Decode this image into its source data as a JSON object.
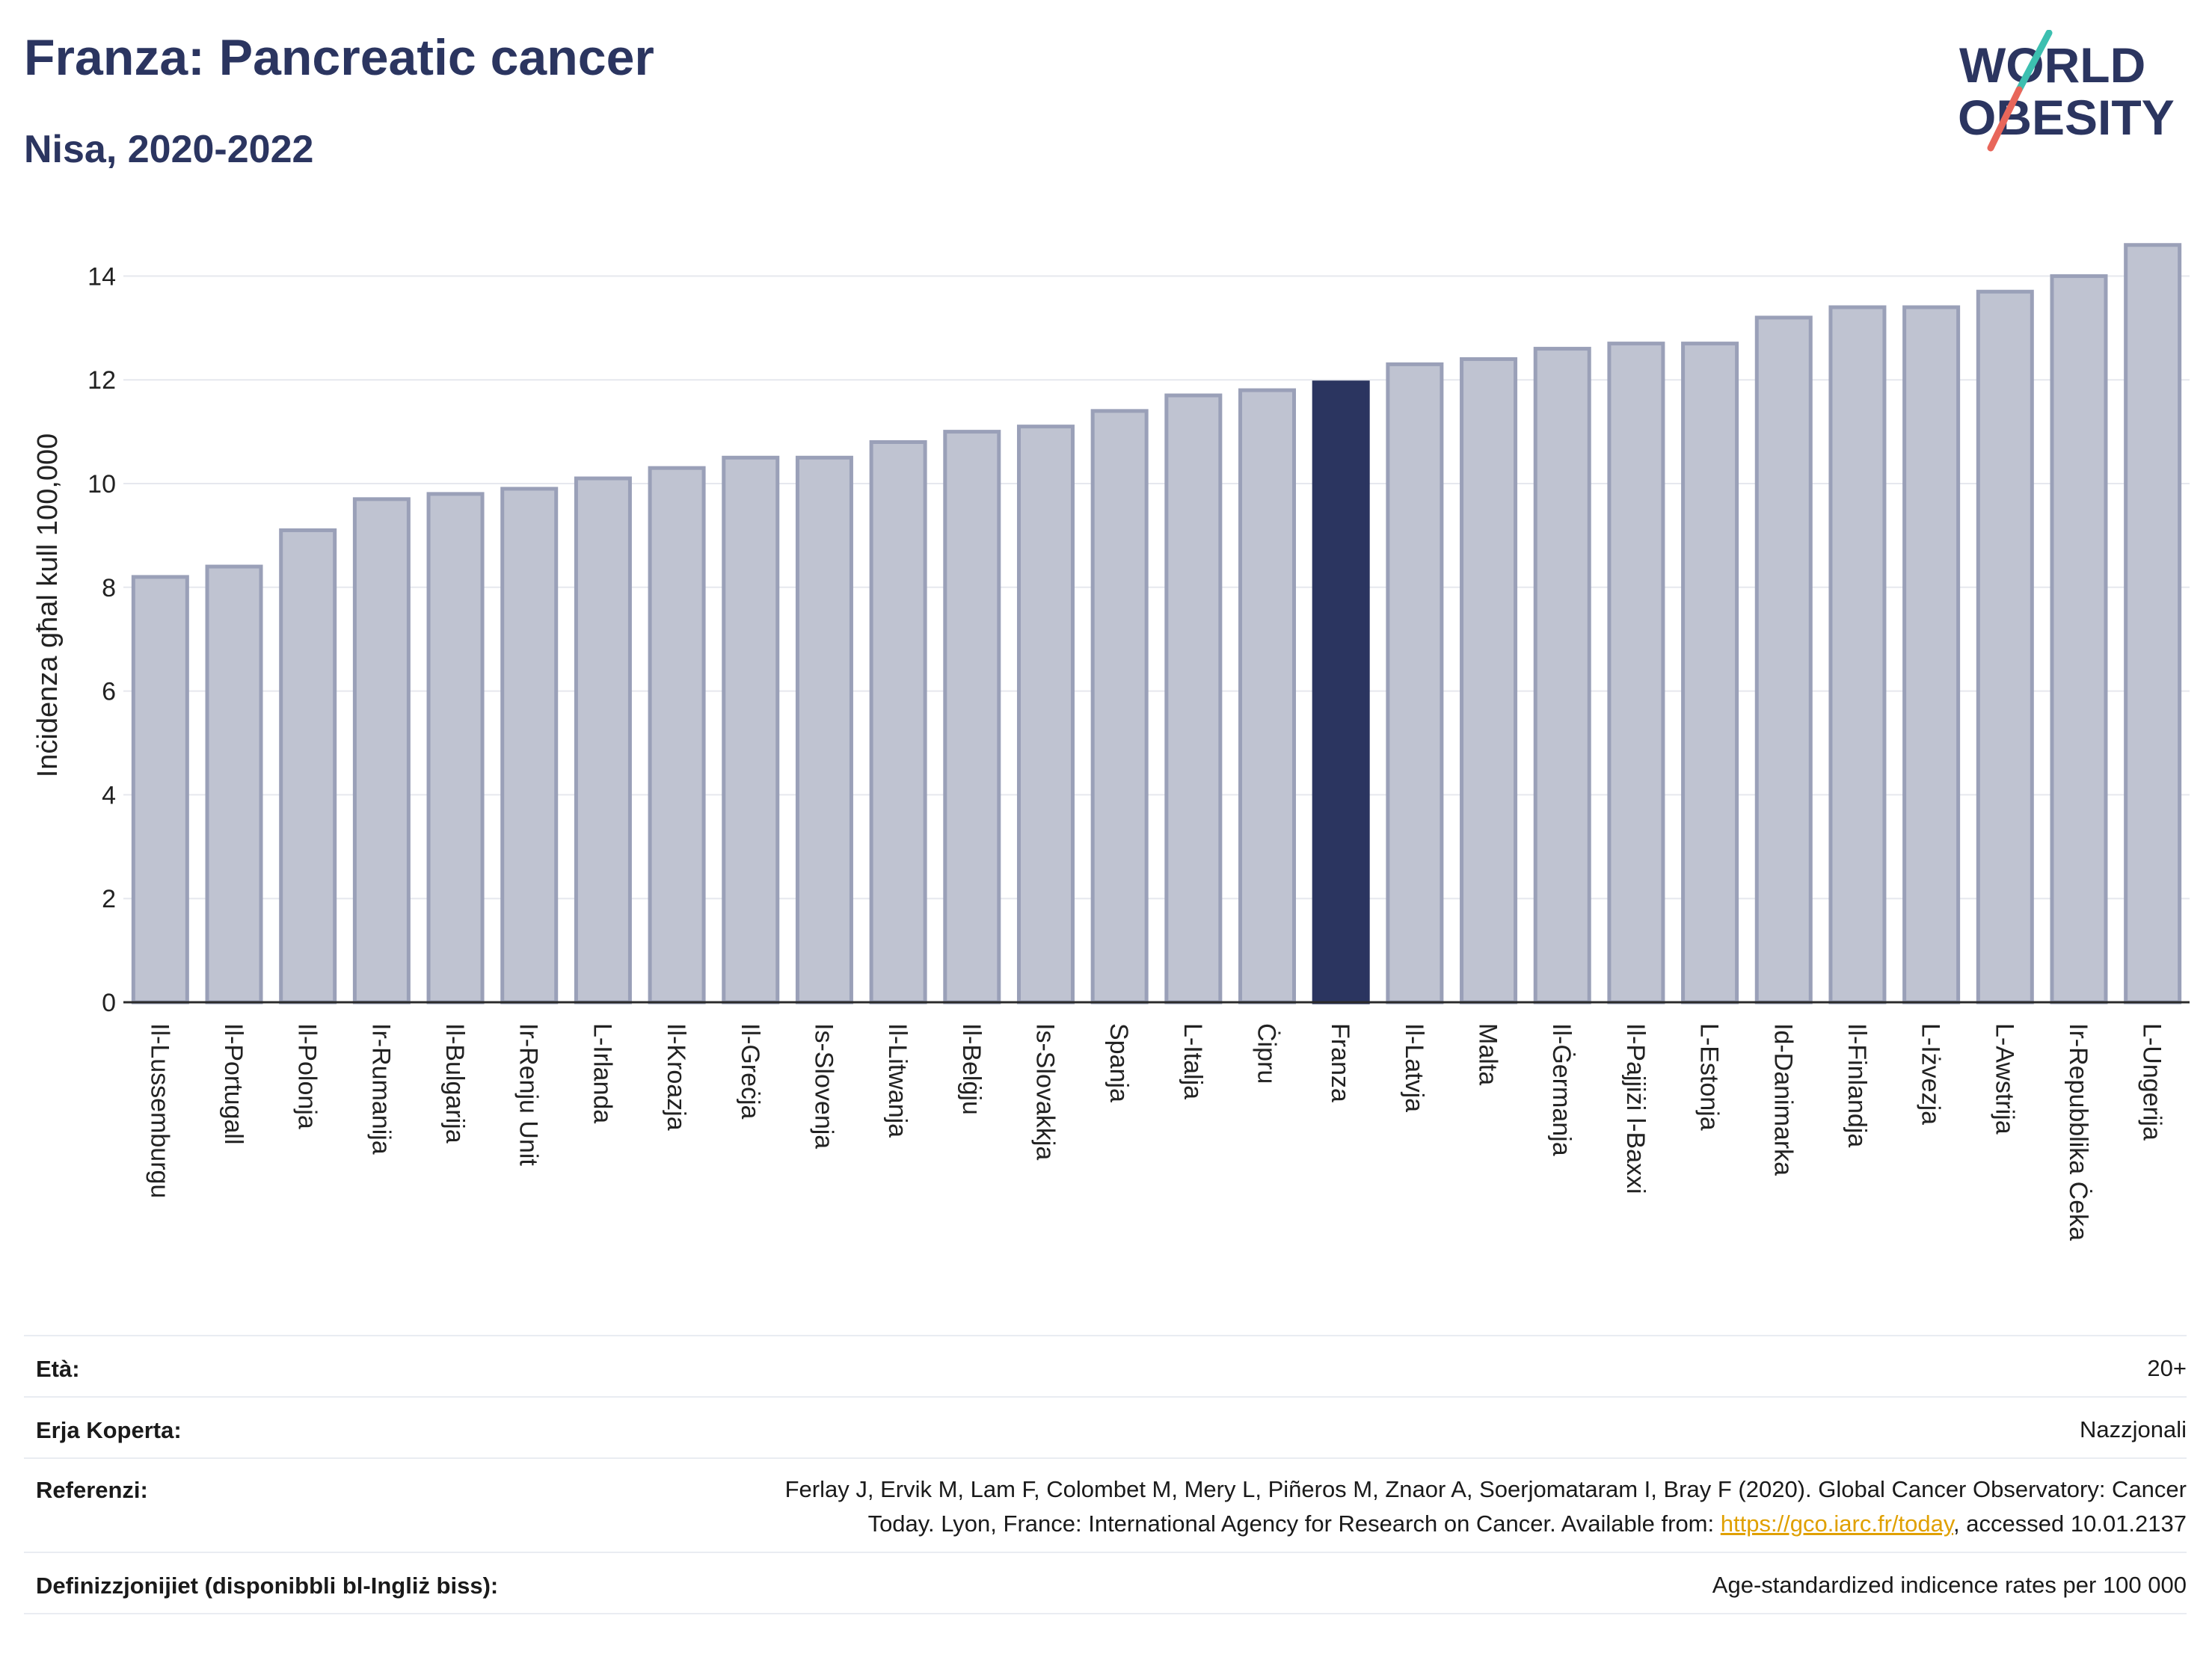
{
  "header": {
    "title": "Franza: Pancreatic cancer",
    "subtitle": "Nisa, 2020-2022"
  },
  "logo": {
    "line1": "WORLD",
    "line2": "OBESITY",
    "text_color": "#2b3560",
    "slash_color_top": "#3cbfb0",
    "slash_color_bottom": "#e8665a"
  },
  "colors": {
    "bar_fill": "#bfc3d1",
    "bar_stroke": "#9aa0b8",
    "highlight_fill": "#2b3560",
    "axis": "#2b2b2b",
    "grid": "#e6e8ee"
  },
  "chart_data": {
    "type": "bar",
    "ylabel": "Inċidenza għal kull 100,000",
    "xlabel": "",
    "ylim": [
      0,
      15
    ],
    "yticks": [
      0,
      2,
      4,
      6,
      8,
      10,
      12,
      14
    ],
    "grid": true,
    "highlight": "Franza",
    "categories": [
      "Il-Lussemburgu",
      "Il-Portugall",
      "Il-Polonja",
      "Ir-Rumanija",
      "Il-Bulgarija",
      "Ir-Renju Unit",
      "L-Irlanda",
      "Il-Kroazja",
      "Il-Greċja",
      "Is-Slovenja",
      "Il-Litwanja",
      "Il-Belġju",
      "Is-Slovakkja",
      "Spanja",
      "L-Italja",
      "Ċipru",
      "Franza",
      "Il-Latvja",
      "Malta",
      "Il-Ġermanja",
      "Il-Pajjiżi l-Baxxi",
      "L-Estonja",
      "Id-Danimarka",
      "Il-Finlandja",
      "L-Iżvezja",
      "L-Awstrija",
      "Ir-Repubblika Ċeka",
      "L-Ungerija"
    ],
    "values": [
      8.2,
      8.4,
      9.1,
      9.7,
      9.8,
      9.9,
      10.1,
      10.3,
      10.5,
      10.5,
      10.8,
      11.0,
      11.1,
      11.4,
      11.7,
      11.8,
      11.95,
      12.3,
      12.4,
      12.6,
      12.7,
      12.7,
      13.2,
      13.4,
      13.4,
      13.7,
      14.0,
      14.6
    ]
  },
  "info": {
    "age_label": "Età:",
    "age_value": "20+",
    "area_label": "Erja Koperta:",
    "area_value": "Nazzjonali",
    "ref_label": "Referenzi:",
    "ref_line1": "Ferlay J, Ervik M, Lam F, Colombet M, Mery L, Piñeros M, Znaor A, Soerjomataram I, Bray F (2020). Global Cancer Observatory: Cancer",
    "ref_line2_pre": "Today. Lyon, France: International Agency for Research on Cancer. Available from: ",
    "ref_link": "https://gco.iarc.fr/today",
    "ref_line2_post": ", accessed 10.01.2137",
    "def_label": "Definizzjonijiet (disponibbli bl-Ingliż biss):",
    "def_value": "Age-standardized indicence rates per 100 000"
  }
}
